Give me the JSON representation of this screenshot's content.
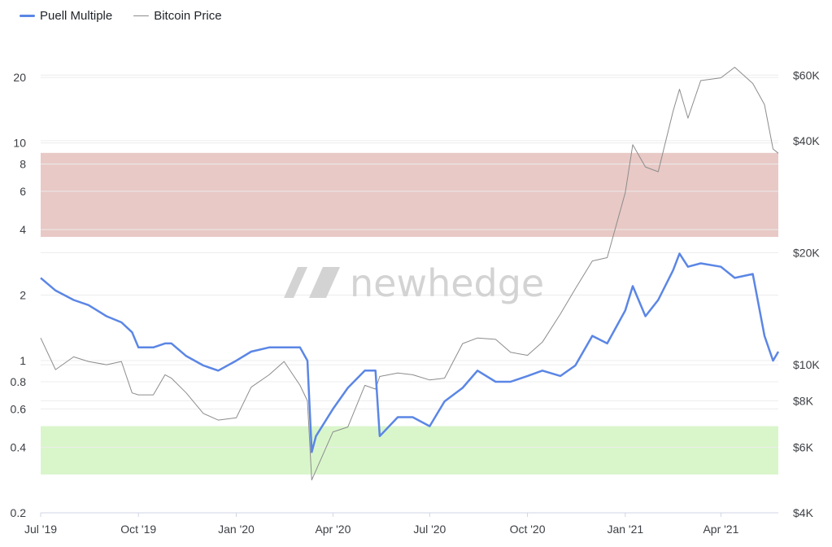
{
  "legend": {
    "puell_label": "Puell Multiple",
    "price_label": "Bitcoin Price",
    "puell_color": "#5b86e5",
    "price_color": "#8c8c8c"
  },
  "watermark": {
    "text": "newhedge",
    "icon": "newhedge-logo-icon"
  },
  "chart_data": {
    "type": "line",
    "x": [
      "2019-07-01",
      "2019-07-15",
      "2019-08-01",
      "2019-08-15",
      "2019-09-01",
      "2019-09-15",
      "2019-09-25",
      "2019-10-01",
      "2019-10-15",
      "2019-10-26",
      "2019-11-01",
      "2019-11-15",
      "2019-12-01",
      "2019-12-15",
      "2020-01-01",
      "2020-01-15",
      "2020-02-01",
      "2020-02-15",
      "2020-03-01",
      "2020-03-08",
      "2020-03-12",
      "2020-03-16",
      "2020-04-01",
      "2020-04-15",
      "2020-05-01",
      "2020-05-11",
      "2020-05-15",
      "2020-06-01",
      "2020-06-15",
      "2020-07-01",
      "2020-07-15",
      "2020-08-01",
      "2020-08-15",
      "2020-09-01",
      "2020-09-15",
      "2020-10-01",
      "2020-10-15",
      "2020-11-01",
      "2020-11-15",
      "2020-12-01",
      "2020-12-15",
      "2021-01-01",
      "2021-01-08",
      "2021-01-20",
      "2021-02-01",
      "2021-02-15",
      "2021-02-21",
      "2021-03-01",
      "2021-03-13",
      "2021-04-01",
      "2021-04-14",
      "2021-05-01",
      "2021-05-12",
      "2021-05-20",
      "2021-05-25"
    ],
    "series": [
      {
        "name": "Puell Multiple",
        "axis": "left",
        "values": [
          2.4,
          2.1,
          1.9,
          1.8,
          1.6,
          1.5,
          1.35,
          1.15,
          1.15,
          1.2,
          1.2,
          1.05,
          0.95,
          0.9,
          1.0,
          1.1,
          1.15,
          1.15,
          1.15,
          1.0,
          0.38,
          0.45,
          0.6,
          0.75,
          0.9,
          0.9,
          0.45,
          0.55,
          0.55,
          0.5,
          0.65,
          0.75,
          0.9,
          0.8,
          0.8,
          0.85,
          0.9,
          0.85,
          0.95,
          1.3,
          1.2,
          1.7,
          2.2,
          1.6,
          1.9,
          2.6,
          3.1,
          2.7,
          2.8,
          2.7,
          2.4,
          2.5,
          1.3,
          1.0,
          1.1
        ]
      },
      {
        "name": "Bitcoin Price",
        "axis": "right",
        "values": [
          11800,
          9700,
          10500,
          10200,
          10000,
          10200,
          8400,
          8300,
          8300,
          9400,
          9200,
          8400,
          7400,
          7100,
          7200,
          8700,
          9400,
          10200,
          8800,
          8000,
          4900,
          5200,
          6600,
          6800,
          8800,
          8600,
          9300,
          9500,
          9400,
          9100,
          9200,
          11400,
          11800,
          11700,
          10800,
          10600,
          11500,
          13700,
          16000,
          19000,
          19400,
          29000,
          39000,
          34000,
          33000,
          48000,
          55000,
          46000,
          58000,
          59000,
          63000,
          57000,
          50000,
          38000,
          37000
        ]
      }
    ],
    "left_axis": {
      "scale": "log",
      "ticks": [
        0.2,
        0.4,
        0.6,
        0.8,
        1,
        2,
        4,
        6,
        8,
        10,
        20
      ],
      "tick_labels": [
        "0.2",
        "0.4",
        "0.6",
        "0.8",
        "1",
        "2",
        "4",
        "6",
        "8",
        "10",
        "20"
      ],
      "range": [
        0.2,
        30
      ]
    },
    "right_axis": {
      "scale": "log",
      "ticks": [
        4000,
        6000,
        8000,
        10000,
        20000,
        40000,
        60000
      ],
      "tick_labels": [
        "$4K",
        "$6K",
        "$8K",
        "$10K",
        "$20K",
        "$40K",
        "$60K"
      ],
      "range": [
        4000,
        75000
      ]
    },
    "x_axis": {
      "ticks": [
        "2019-07-01",
        "2019-10-01",
        "2020-01-01",
        "2020-04-01",
        "2020-07-01",
        "2020-10-01",
        "2021-01-01",
        "2021-04-01"
      ],
      "tick_labels": [
        "Jul '19",
        "Oct '19",
        "Jan '20",
        "Apr '20",
        "Jul '20",
        "Oct '20",
        "Jan '21",
        "Apr '21"
      ],
      "range": [
        "2019-07-01",
        "2021-05-25"
      ]
    },
    "bands": [
      {
        "from": 3.7,
        "to": 9.0,
        "color": "#e8c9c6"
      },
      {
        "from": 0.3,
        "to": 0.5,
        "color": "#d9f6cb"
      }
    ],
    "grid": true,
    "legend_position": "top-left"
  }
}
